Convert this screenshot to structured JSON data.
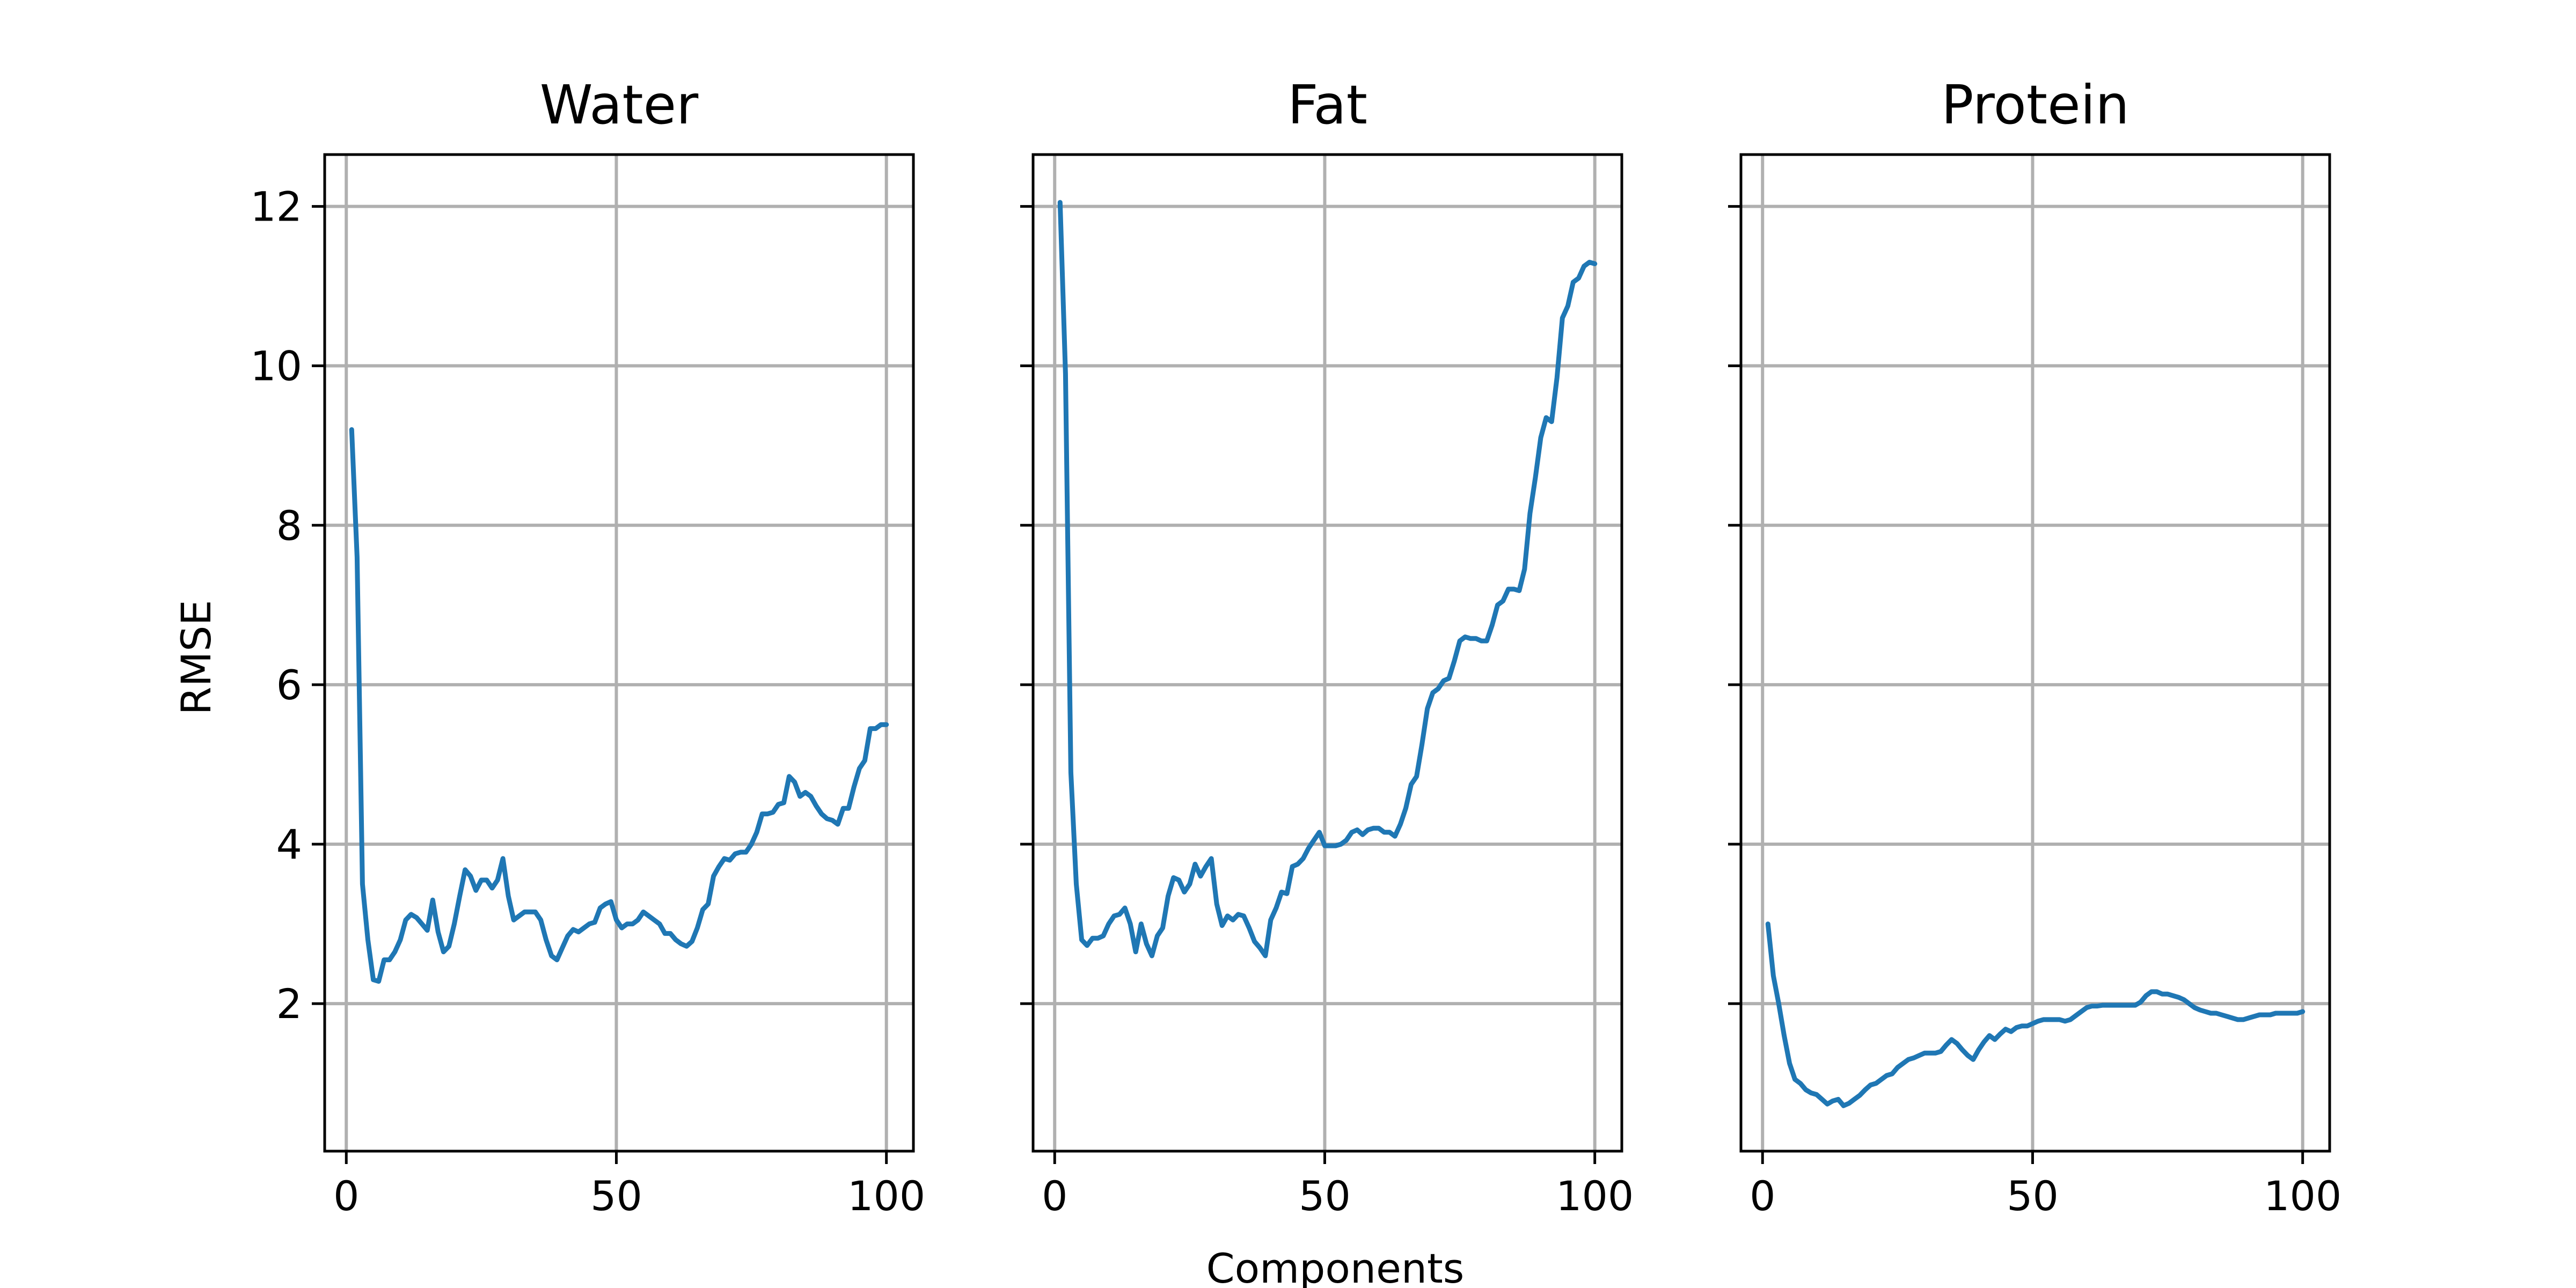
{
  "chart_data": {
    "type": "line",
    "layout": "3 panels side by side, shared y-axis",
    "shared_xlabel": "Components",
    "shared_ylabel": "RMSE",
    "xlim": [
      -4,
      105
    ],
    "ylim": [
      0.15,
      12.65
    ],
    "xticks": [
      0,
      50,
      100
    ],
    "yticks": [
      2,
      4,
      6,
      8,
      10,
      12
    ],
    "grid": true,
    "line_color": "#1f77b4",
    "panels": [
      {
        "title": "Water",
        "x_start": 1,
        "x_step": 1,
        "values": [
          9.2,
          7.6,
          3.5,
          2.8,
          2.3,
          2.28,
          2.55,
          2.55,
          2.65,
          2.8,
          3.05,
          3.12,
          3.08,
          3.0,
          2.92,
          3.3,
          2.9,
          2.65,
          2.72,
          3.0,
          3.35,
          3.68,
          3.6,
          3.42,
          3.55,
          3.55,
          3.45,
          3.55,
          3.82,
          3.35,
          3.05,
          3.1,
          3.15,
          3.15,
          3.15,
          3.05,
          2.8,
          2.6,
          2.55,
          2.7,
          2.85,
          2.93,
          2.9,
          2.95,
          3.0,
          3.02,
          3.2,
          3.25,
          3.28,
          3.05,
          2.95,
          3.0,
          3.0,
          3.05,
          3.15,
          3.1,
          3.05,
          3.0,
          2.88,
          2.88,
          2.8,
          2.75,
          2.72,
          2.78,
          2.95,
          3.18,
          3.25,
          3.6,
          3.72,
          3.82,
          3.8,
          3.88,
          3.9,
          3.9,
          4.0,
          4.15,
          4.38,
          4.38,
          4.4,
          4.5,
          4.52,
          4.85,
          4.78,
          4.6,
          4.65,
          4.6,
          4.48,
          4.38,
          4.32,
          4.3,
          4.25,
          4.45,
          4.45,
          4.72,
          4.95,
          5.05,
          5.45,
          5.45,
          5.5,
          5.5
        ]
      },
      {
        "title": "Fat",
        "x_start": 1,
        "x_step": 1,
        "values": [
          12.05,
          9.9,
          4.9,
          3.5,
          2.8,
          2.73,
          2.82,
          2.82,
          2.85,
          3.0,
          3.1,
          3.12,
          3.2,
          3.0,
          2.65,
          3.0,
          2.75,
          2.6,
          2.85,
          2.95,
          3.35,
          3.58,
          3.55,
          3.4,
          3.5,
          3.75,
          3.6,
          3.72,
          3.82,
          3.25,
          2.98,
          3.1,
          3.05,
          3.12,
          3.1,
          2.95,
          2.78,
          2.7,
          2.6,
          3.05,
          3.2,
          3.4,
          3.38,
          3.72,
          3.75,
          3.82,
          3.95,
          4.05,
          4.15,
          3.98,
          3.98,
          3.98,
          4.0,
          4.05,
          4.15,
          4.18,
          4.12,
          4.18,
          4.2,
          4.2,
          4.15,
          4.15,
          4.1,
          4.25,
          4.45,
          4.75,
          4.85,
          5.25,
          5.7,
          5.9,
          5.95,
          6.05,
          6.08,
          6.3,
          6.55,
          6.6,
          6.58,
          6.58,
          6.55,
          6.55,
          6.75,
          7.0,
          7.05,
          7.2,
          7.2,
          7.18,
          7.45,
          8.15,
          8.6,
          9.1,
          9.35,
          9.3,
          9.85,
          10.6,
          10.75,
          11.05,
          11.1,
          11.25,
          11.3,
          11.28
        ]
      },
      {
        "title": "Protein",
        "x_start": 1,
        "x_step": 1,
        "values": [
          3.0,
          2.35,
          2.0,
          1.6,
          1.25,
          1.05,
          1.0,
          0.92,
          0.88,
          0.86,
          0.8,
          0.74,
          0.78,
          0.8,
          0.72,
          0.75,
          0.8,
          0.85,
          0.92,
          0.98,
          1.0,
          1.05,
          1.1,
          1.12,
          1.2,
          1.25,
          1.3,
          1.32,
          1.35,
          1.38,
          1.38,
          1.38,
          1.4,
          1.48,
          1.55,
          1.5,
          1.42,
          1.35,
          1.3,
          1.42,
          1.52,
          1.6,
          1.55,
          1.62,
          1.68,
          1.65,
          1.7,
          1.72,
          1.72,
          1.75,
          1.78,
          1.8,
          1.8,
          1.8,
          1.8,
          1.78,
          1.8,
          1.85,
          1.9,
          1.95,
          1.97,
          1.97,
          1.98,
          1.98,
          1.98,
          1.98,
          1.98,
          1.98,
          1.98,
          2.02,
          2.1,
          2.15,
          2.15,
          2.12,
          2.12,
          2.1,
          2.08,
          2.05,
          2.0,
          1.95,
          1.92,
          1.9,
          1.88,
          1.88,
          1.86,
          1.84,
          1.82,
          1.8,
          1.8,
          1.82,
          1.84,
          1.86,
          1.86,
          1.86,
          1.88,
          1.88,
          1.88,
          1.88,
          1.88,
          1.9
        ]
      }
    ]
  }
}
